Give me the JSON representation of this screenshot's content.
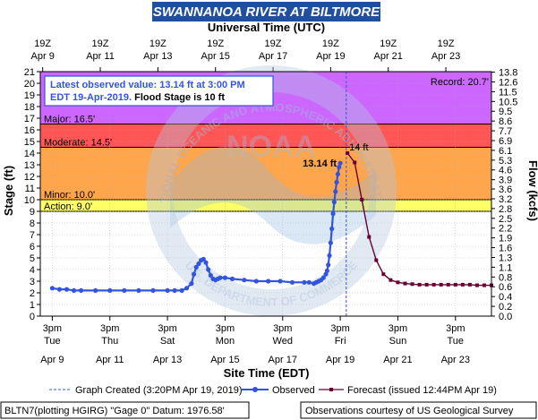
{
  "chart_data": {
    "type": "line",
    "title": "SWANNANOA RIVER AT BILTMORE",
    "top_axis_label": "Universal Time (UTC)",
    "xlabel": "Site Time (EDT)",
    "ylabel_left": "Stage (ft)",
    "ylabel_right": "Flow (kcfs)",
    "ylim": [
      0,
      21
    ],
    "xlim_hours": [
      0,
      378
    ],
    "left_ticks": [
      0,
      1,
      2,
      3,
      4,
      5,
      6,
      7,
      8,
      9,
      10,
      11,
      12,
      13,
      14,
      15,
      16,
      17,
      18,
      19,
      20,
      21
    ],
    "right_ticks": [
      {
        "stage": 0.0,
        "label": "0.0"
      },
      {
        "stage": 1.0,
        "label": "0.2"
      },
      {
        "stage": 2.0,
        "label": "0.4"
      },
      {
        "stage": 3.0,
        "label": "0.6"
      },
      {
        "stage": 4.0,
        "label": "0.8"
      },
      {
        "stage": 5.0,
        "label": "1.1"
      },
      {
        "stage": 6.0,
        "label": "1.3"
      },
      {
        "stage": 7.0,
        "label": "1.6"
      },
      {
        "stage": 8.0,
        "label": "1.9"
      },
      {
        "stage": 9.0,
        "label": "2.2"
      },
      {
        "stage": 10.0,
        "label": "2.5"
      },
      {
        "stage": 11.0,
        "label": "2.8"
      },
      {
        "stage": 12.0,
        "label": "3.2"
      },
      {
        "stage": 13.0,
        "label": "3.6"
      },
      {
        "stage": 13.95,
        "label": "3.9"
      },
      {
        "stage": 14.95,
        "label": "4.6"
      },
      {
        "stage": 15.95,
        "label": "5.3"
      },
      {
        "stage": 16.95,
        "label": "6.1"
      },
      {
        "stage": 17.95,
        "label": "6.9"
      },
      {
        "stage": 18.95,
        "label": "7.7"
      },
      {
        "stage": 19.95,
        "label": "8.6"
      },
      {
        "stage": 20.95,
        "label": "9.5"
      },
      {
        "stage": 21.95,
        "label": "10.5"
      },
      {
        "stage": 22.95,
        "label": "11.5"
      },
      {
        "stage": 23.95,
        "label": "12.6"
      },
      {
        "stage": 24.95,
        "label": "13.8"
      }
    ],
    "bottom_ticks": [
      {
        "h": 0,
        "t1": "3pm",
        "t2": "Tue",
        "date": "Apr 9"
      },
      {
        "h": 48,
        "t1": "3pm",
        "t2": "Thu",
        "date": "Apr 11"
      },
      {
        "h": 96,
        "t1": "3pm",
        "t2": "Sat",
        "date": "Apr 13"
      },
      {
        "h": 144,
        "t1": "3pm",
        "t2": "Mon",
        "date": "Apr 15"
      },
      {
        "h": 192,
        "t1": "3pm",
        "t2": "Wed",
        "date": "Apr 17"
      },
      {
        "h": 240,
        "t1": "3pm",
        "t2": "Fri",
        "date": "Apr 19"
      },
      {
        "h": 288,
        "t1": "3pm",
        "t2": "Sun",
        "date": "Apr 21"
      },
      {
        "h": 336,
        "t1": "3pm",
        "t2": "Tue",
        "date": "Apr 23"
      }
    ],
    "top_ticks": [
      {
        "h": -8,
        "t1": "19Z",
        "t2": "Apr  9"
      },
      {
        "h": 40,
        "t1": "19Z",
        "t2": "Apr 11"
      },
      {
        "h": 88,
        "t1": "19Z",
        "t2": "Apr 13"
      },
      {
        "h": 136,
        "t1": "19Z",
        "t2": "Apr 15"
      },
      {
        "h": 184,
        "t1": "19Z",
        "t2": "Apr 17"
      },
      {
        "h": 232,
        "t1": "19Z",
        "t2": "Apr 19"
      },
      {
        "h": 280,
        "t1": "19Z",
        "t2": "Apr 21"
      },
      {
        "h": 328,
        "t1": "19Z",
        "t2": "Apr 23"
      }
    ],
    "flood_categories": [
      {
        "name": "Action",
        "label": "Action: 9.0'",
        "from": 9.0,
        "to": 10.0,
        "color": "#ffff66"
      },
      {
        "name": "Minor",
        "label": "Minor: 10.0'",
        "from": 10.0,
        "to": 14.5,
        "color": "#ffa64d"
      },
      {
        "name": "Moderate",
        "label": "Moderate: 14.5'",
        "from": 14.5,
        "to": 16.5,
        "color": "#ff5555"
      },
      {
        "name": "Major",
        "label": "Major: 16.5'",
        "from": 16.5,
        "to": 21.0,
        "color": "#cc66ff"
      }
    ],
    "record_label": "Record: 20.7'",
    "record_value": 20.7,
    "graph_created_h": 245,
    "info_box": {
      "line1": "Latest observed value: 13.14 ft at 3:00 PM",
      "line2_blue": "EDT 19-Apr-2019.",
      "line2_black": " Flood Stage is 10 ft"
    },
    "latest_label": "13.14 ft",
    "forecast_peak_label": "14 ft",
    "series": [
      {
        "name": "Observed",
        "color": "#3355dd",
        "x": [
          0,
          6,
          12,
          18,
          24,
          36,
          48,
          60,
          72,
          84,
          96,
          102,
          108,
          112,
          116,
          118,
          120,
          122,
          124,
          126,
          128,
          130,
          132,
          134,
          136,
          138,
          140,
          144,
          150,
          160,
          170,
          180,
          190,
          200,
          210,
          214,
          218,
          220,
          222,
          224,
          226,
          228,
          229,
          230,
          231,
          232,
          233,
          234,
          235,
          236,
          237,
          238,
          239,
          240
        ],
        "y": [
          2.4,
          2.3,
          2.3,
          2.2,
          2.2,
          2.2,
          2.2,
          2.2,
          2.2,
          2.2,
          2.2,
          2.2,
          2.2,
          2.4,
          2.8,
          3.6,
          4.2,
          4.5,
          4.8,
          4.9,
          4.6,
          4.0,
          3.5,
          3.2,
          3.1,
          3.2,
          3.3,
          3.3,
          3.2,
          3.1,
          3.0,
          3.0,
          3.0,
          2.9,
          2.9,
          2.9,
          2.8,
          2.9,
          3.0,
          3.1,
          3.3,
          3.6,
          3.9,
          4.4,
          5.2,
          6.3,
          7.5,
          8.8,
          9.8,
          10.7,
          11.5,
          12.2,
          12.8,
          13.14
        ]
      },
      {
        "name": "Forecast",
        "color": "#660033",
        "x": [
          246,
          252,
          258,
          264,
          270,
          276,
          282,
          288,
          294,
          300,
          306,
          312,
          318,
          324,
          330,
          336,
          342,
          348,
          354,
          360,
          366
        ],
        "y": [
          14.0,
          13.2,
          10.0,
          6.8,
          4.8,
          3.6,
          3.1,
          2.9,
          2.8,
          2.75,
          2.7,
          2.7,
          2.7,
          2.7,
          2.7,
          2.7,
          2.7,
          2.7,
          2.65,
          2.65,
          2.65
        ]
      }
    ],
    "legend": {
      "graph_created": "Graph Created (3:20PM Apr 19, 2019)",
      "observed": "Observed",
      "forecast": "Forecast (issued 12:44PM Apr 19)"
    }
  },
  "footer": {
    "left": "BLTN7(plotting HGIRG) \"Gage 0\" Datum: 1976.58'",
    "right": "Observations courtesy of US Geological Survey"
  },
  "watermark": {
    "ring_text_top": "NATIONAL OCEANIC AND ATMOSPHERIC ADMINISTRATION",
    "ring_text_bottom": "U.S. DEPARTMENT OF COMMERCE",
    "center": "NOAA"
  }
}
